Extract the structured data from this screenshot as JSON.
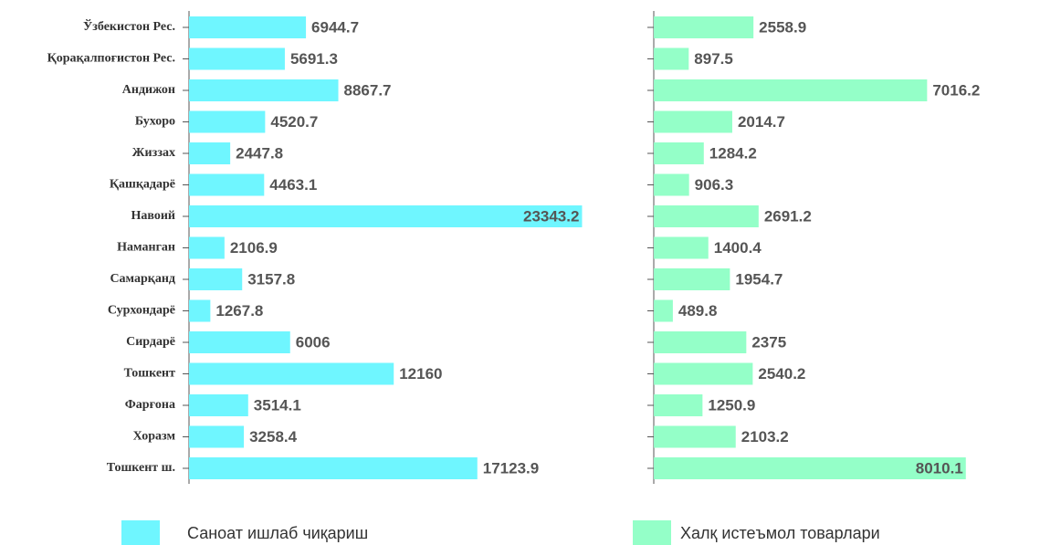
{
  "chart_data": [
    {
      "type": "bar",
      "orientation": "horizontal",
      "categories": [
        "Ўзбекистон Рес.",
        "Қорақалпоғистон Рес.",
        "Андижон",
        "Бухоро",
        "Жиззах",
        "Қашқадарё",
        "Навоий",
        "Наманган",
        "Самарқанд",
        "Сурхондарё",
        "Сирдарё",
        "Тошкент",
        "Фарғона",
        "Хоразм",
        "Тошкент ш."
      ],
      "series": [
        {
          "name": "Саноат ишлаб чиқариш",
          "color": "#6ff6ff",
          "values": [
            6944.7,
            5691.3,
            8867.7,
            4520.7,
            2447.8,
            4463.1,
            23343.2,
            2106.9,
            3157.8,
            1267.8,
            6006,
            12160,
            3514.1,
            3258.4,
            17123.9
          ]
        }
      ],
      "xlim": [
        0,
        25000
      ]
    },
    {
      "type": "bar",
      "orientation": "horizontal",
      "categories": [
        null,
        null,
        null,
        null,
        null,
        null,
        null,
        null,
        null,
        null,
        null,
        null,
        null,
        null,
        null
      ],
      "series": [
        {
          "name": "Халқ истеъмол товарлари",
          "color": "#94ffc8",
          "values": [
            2558.9,
            897.5,
            7016.2,
            2014.7,
            1284.2,
            906.3,
            2691.2,
            1400.4,
            1954.7,
            489.8,
            2375,
            2540.2,
            1250.9,
            2103.2,
            8010.1
          ]
        }
      ],
      "xlim": [
        0,
        9000
      ]
    }
  ]
}
